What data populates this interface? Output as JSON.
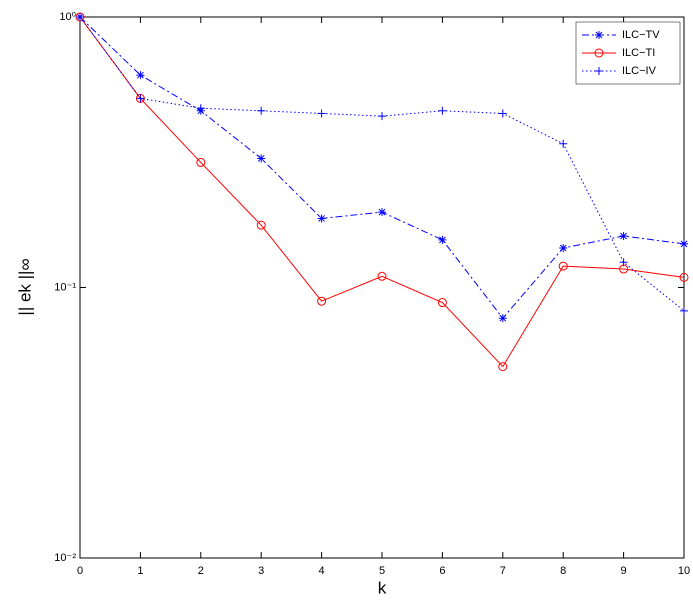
{
  "chart_data": {
    "type": "line",
    "xlabel": "k",
    "ylabel": "|| ek ||∞",
    "x": [
      0,
      1,
      2,
      3,
      4,
      5,
      6,
      7,
      8,
      9,
      10
    ],
    "series": [
      {
        "name": "ILC−TV",
        "color": "#0000ff",
        "linestyle": "dashdot",
        "marker": "asterisk",
        "values": [
          1,
          0.61,
          0.45,
          0.3,
          0.18,
          0.19,
          0.15,
          0.077,
          0.14,
          0.155,
          0.145
        ]
      },
      {
        "name": "ILC−TI",
        "color": "#ff0000",
        "linestyle": "solid",
        "marker": "circle",
        "values": [
          1,
          0.5,
          0.29,
          0.17,
          0.089,
          0.11,
          0.088,
          0.051,
          0.12,
          0.117,
          0.109
        ]
      },
      {
        "name": "ILC−IV",
        "color": "#0000ff",
        "linestyle": "dotted",
        "marker": "plus",
        "values": [
          1,
          0.5,
          0.46,
          0.45,
          0.44,
          0.43,
          0.45,
          0.44,
          0.34,
          0.124,
          0.082
        ]
      }
    ],
    "xlim": [
      0,
      10
    ],
    "xticks": [
      0,
      1,
      2,
      3,
      4,
      5,
      6,
      7,
      8,
      9,
      10
    ],
    "ylim": [
      0.01,
      1
    ],
    "log_y": true,
    "yticks": [
      {
        "value": 0.01,
        "label": "10⁻²"
      },
      {
        "value": 0.1,
        "label": "10⁻¹"
      },
      {
        "value": 1,
        "label": "10⁰"
      }
    ],
    "legend": "upper right"
  }
}
